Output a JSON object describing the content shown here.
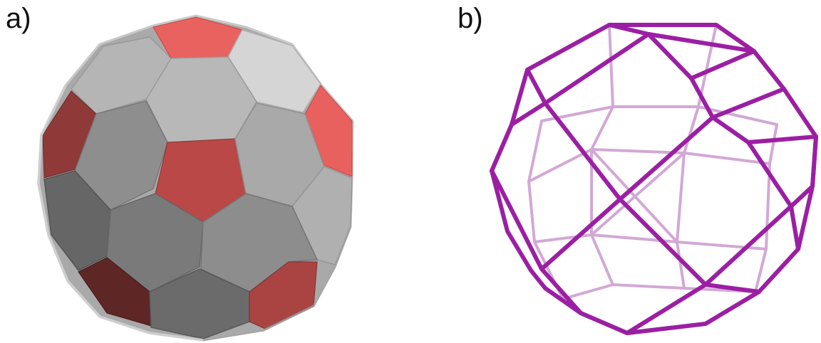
{
  "panels": [
    {
      "label": "a)"
    },
    {
      "label": "b)"
    }
  ],
  "colors": {
    "pentagon_face": "#e8615f",
    "hexagon_face": "#b4b4b4",
    "wireframe": "#9b1fa3",
    "background": "#ffffff"
  }
}
